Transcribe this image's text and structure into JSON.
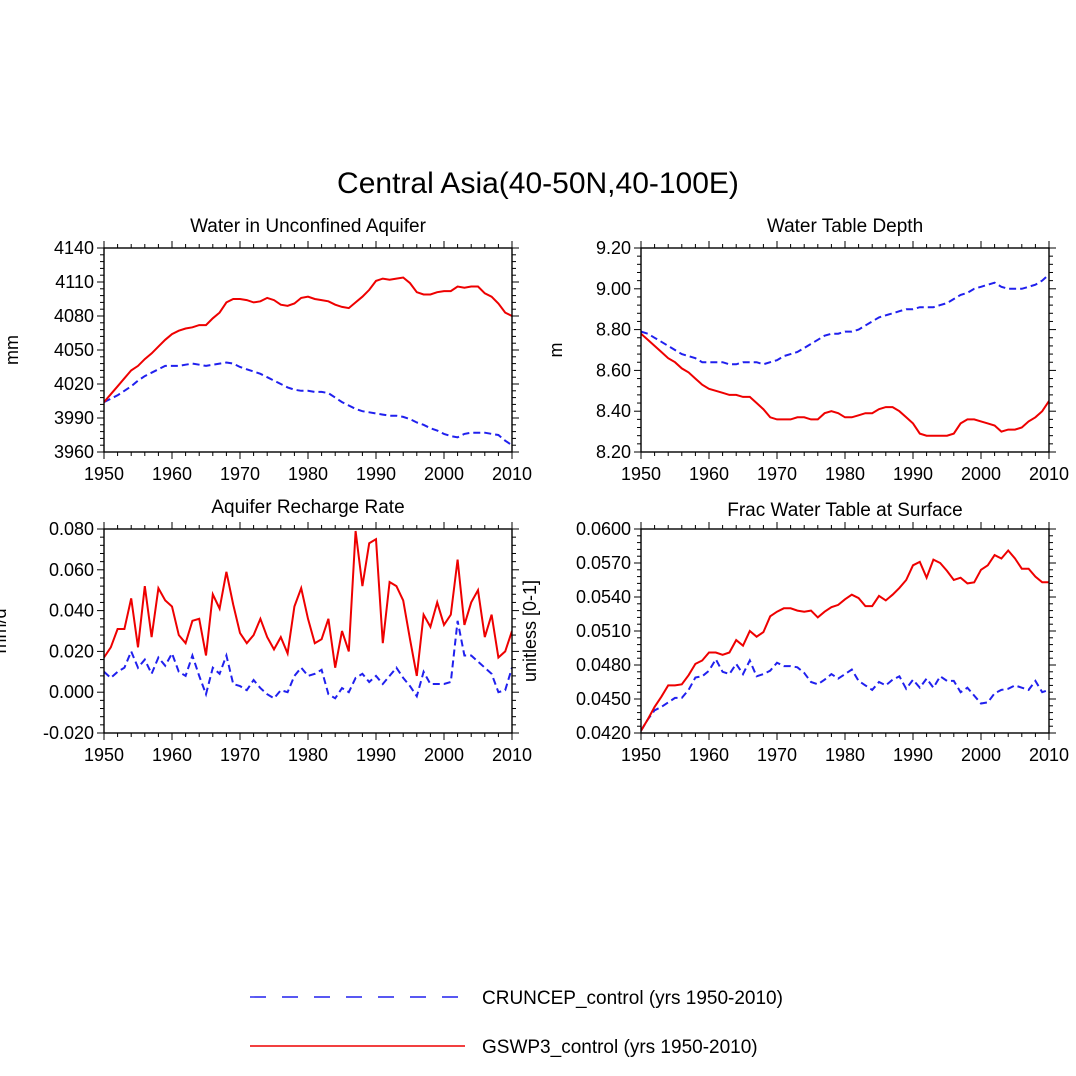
{
  "figure": {
    "title": "Central Asia(40-50N,40-100E)"
  },
  "legend": {
    "items": [
      {
        "label": "CRUNCEP_control (yrs 1950-2010)",
        "color": "#2020ee",
        "dash": "dashed"
      },
      {
        "label": "GSWP3_control (yrs 1950-2010)",
        "color": "#ee0000",
        "dash": "solid"
      }
    ]
  },
  "chart_data": [
    {
      "type": "line",
      "title": "Water in Unconfined Aquifer",
      "xlabel": "",
      "ylabel": "mm",
      "xlim": [
        1950,
        2010
      ],
      "ylim": [
        3960,
        4140
      ],
      "xticks": [
        1950,
        1960,
        1970,
        1980,
        1990,
        2000,
        2010
      ],
      "yticks": [
        3960,
        3990,
        4020,
        4050,
        4080,
        4110,
        4140
      ],
      "ytick_labels": [
        "3960",
        "3990",
        "4020",
        "4050",
        "4080",
        "4110",
        "4140"
      ],
      "xstart": 1950,
      "series": [
        {
          "name": "CRUNCEP_control (yrs 1950-2010)",
          "color": "#2020ee",
          "dash": "dashed",
          "values": [
            4004,
            4007,
            4010,
            4014,
            4018,
            4023,
            4027,
            4030,
            4033,
            4036,
            4036,
            4036,
            4037,
            4038,
            4037,
            4036,
            4037,
            4038,
            4039,
            4038,
            4035,
            4033,
            4031,
            4029,
            4026,
            4023,
            4020,
            4017,
            4015,
            4014,
            4014,
            4013,
            4013,
            4012,
            4008,
            4004,
            4001,
            3998,
            3996,
            3995,
            3994,
            3993,
            3992,
            3992,
            3991,
            3989,
            3986,
            3984,
            3981,
            3979,
            3976,
            3974,
            3973,
            3976,
            3977,
            3977,
            3977,
            3976,
            3975,
            3970,
            3966
          ]
        },
        {
          "name": "GSWP3_control (yrs 1950-2010)",
          "color": "#ee0000",
          "dash": "solid",
          "values": [
            4004,
            4011,
            4018,
            4025,
            4032,
            4036,
            4042,
            4047,
            4053,
            4059,
            4064,
            4067,
            4069,
            4070,
            4072,
            4072,
            4078,
            4083,
            4092,
            4095,
            4095,
            4094,
            4092,
            4093,
            4096,
            4094,
            4090,
            4089,
            4091,
            4096,
            4097,
            4095,
            4094,
            4093,
            4090,
            4088,
            4087,
            4092,
            4097,
            4103,
            4111,
            4113,
            4112,
            4113,
            4114,
            4109,
            4101,
            4099,
            4099,
            4101,
            4102,
            4102,
            4106,
            4105,
            4106,
            4106,
            4100,
            4097,
            4091,
            4083,
            4080
          ]
        }
      ]
    },
    {
      "type": "line",
      "title": "Water Table Depth",
      "xlabel": "",
      "ylabel": "m",
      "xlim": [
        1950,
        2010
      ],
      "ylim": [
        8.2,
        9.2
      ],
      "xticks": [
        1950,
        1960,
        1970,
        1980,
        1990,
        2000,
        2010
      ],
      "yticks": [
        8.2,
        8.4,
        8.6,
        8.8,
        9.0,
        9.2
      ],
      "ytick_labels": [
        "8.20",
        "8.40",
        "8.60",
        "8.80",
        "9.00",
        "9.20"
      ],
      "xstart": 1950,
      "series": [
        {
          "name": "CRUNCEP_control (yrs 1950-2010)",
          "color": "#2020ee",
          "dash": "dashed",
          "values": [
            8.79,
            8.78,
            8.76,
            8.74,
            8.72,
            8.7,
            8.68,
            8.67,
            8.66,
            8.64,
            8.64,
            8.64,
            8.64,
            8.63,
            8.63,
            8.64,
            8.64,
            8.64,
            8.63,
            8.64,
            8.65,
            8.67,
            8.68,
            8.69,
            8.71,
            8.73,
            8.75,
            8.77,
            8.78,
            8.78,
            8.79,
            8.79,
            8.8,
            8.82,
            8.84,
            8.86,
            8.87,
            8.88,
            8.89,
            8.9,
            8.9,
            8.91,
            8.91,
            8.91,
            8.92,
            8.93,
            8.95,
            8.97,
            8.98,
            9.0,
            9.01,
            9.02,
            9.03,
            9.01,
            9.0,
            9.0,
            9.0,
            9.01,
            9.02,
            9.04,
            9.07
          ]
        },
        {
          "name": "GSWP3_control (yrs 1950-2010)",
          "color": "#ee0000",
          "dash": "solid",
          "values": [
            8.78,
            8.75,
            8.72,
            8.69,
            8.66,
            8.64,
            8.61,
            8.59,
            8.56,
            8.53,
            8.51,
            8.5,
            8.49,
            8.48,
            8.48,
            8.47,
            8.47,
            8.44,
            8.41,
            8.37,
            8.36,
            8.36,
            8.36,
            8.37,
            8.37,
            8.36,
            8.36,
            8.39,
            8.4,
            8.39,
            8.37,
            8.37,
            8.38,
            8.39,
            8.39,
            8.41,
            8.42,
            8.42,
            8.4,
            8.37,
            8.34,
            8.29,
            8.28,
            8.28,
            8.28,
            8.28,
            8.29,
            8.34,
            8.36,
            8.36,
            8.35,
            8.34,
            8.33,
            8.3,
            8.31,
            8.31,
            8.32,
            8.35,
            8.37,
            8.4,
            8.45
          ]
        }
      ]
    },
    {
      "type": "line",
      "title": "Aquifer Recharge Rate",
      "xlabel": "",
      "ylabel": "mm/d",
      "xlim": [
        1950,
        2010
      ],
      "ylim": [
        -0.02,
        0.08
      ],
      "xticks": [
        1950,
        1960,
        1970,
        1980,
        1990,
        2000,
        2010
      ],
      "yticks": [
        -0.02,
        0.0,
        0.02,
        0.04,
        0.06,
        0.08
      ],
      "ytick_labels": [
        "-0.020",
        "0.000",
        "0.020",
        "0.040",
        "0.060",
        "0.080"
      ],
      "xstart": 1950,
      "series": [
        {
          "name": "CRUNCEP_control (yrs 1950-2010)",
          "color": "#2020ee",
          "dash": "dashed",
          "values": [
            0.01,
            0.007,
            0.01,
            0.012,
            0.02,
            0.012,
            0.016,
            0.009,
            0.017,
            0.013,
            0.019,
            0.01,
            0.008,
            0.018,
            0.008,
            -0.001,
            0.012,
            0.009,
            0.018,
            0.004,
            0.003,
            0.001,
            0.006,
            0.002,
            -0.001,
            -0.003,
            0.001,
            0.0,
            0.008,
            0.012,
            0.008,
            0.009,
            0.011,
            -0.001,
            -0.003,
            0.002,
            0.0,
            0.007,
            0.009,
            0.005,
            0.008,
            0.004,
            0.008,
            0.012,
            0.007,
            0.003,
            -0.002,
            0.01,
            0.004,
            0.004,
            0.004,
            0.005,
            0.035,
            0.018,
            0.018,
            0.015,
            0.012,
            0.009,
            0.0,
            0.001,
            0.012
          ]
        },
        {
          "name": "GSWP3_control (yrs 1950-2010)",
          "color": "#ee0000",
          "dash": "solid",
          "values": [
            0.017,
            0.022,
            0.031,
            0.031,
            0.046,
            0.022,
            0.052,
            0.027,
            0.051,
            0.045,
            0.042,
            0.028,
            0.024,
            0.035,
            0.036,
            0.018,
            0.048,
            0.041,
            0.059,
            0.043,
            0.029,
            0.024,
            0.028,
            0.036,
            0.027,
            0.021,
            0.027,
            0.019,
            0.042,
            0.051,
            0.036,
            0.024,
            0.026,
            0.036,
            0.012,
            0.03,
            0.02,
            0.079,
            0.052,
            0.073,
            0.075,
            0.024,
            0.054,
            0.052,
            0.045,
            0.026,
            0.008,
            0.038,
            0.032,
            0.044,
            0.033,
            0.038,
            0.065,
            0.033,
            0.044,
            0.05,
            0.027,
            0.038,
            0.017,
            0.02,
            0.03
          ]
        }
      ]
    },
    {
      "type": "line",
      "title": "Frac Water Table at Surface",
      "xlabel": "",
      "ylabel": "unitless [0-1]",
      "xlim": [
        1950,
        2010
      ],
      "ylim": [
        0.042,
        0.06
      ],
      "xticks": [
        1950,
        1960,
        1970,
        1980,
        1990,
        2000,
        2010
      ],
      "yticks": [
        0.042,
        0.045,
        0.048,
        0.051,
        0.054,
        0.057,
        0.06
      ],
      "ytick_labels": [
        "0.0420",
        "0.0450",
        "0.0480",
        "0.0510",
        "0.0540",
        "0.0570",
        "0.0600"
      ],
      "xstart": 1950,
      "series": [
        {
          "name": "CRUNCEP_control (yrs 1950-2010)",
          "color": "#2020ee",
          "dash": "dashed",
          "values": [
            0.0422,
            0.0432,
            0.044,
            0.0443,
            0.0447,
            0.0451,
            0.0451,
            0.0458,
            0.0469,
            0.047,
            0.0475,
            0.0485,
            0.0474,
            0.0472,
            0.0481,
            0.0472,
            0.0484,
            0.047,
            0.0472,
            0.0475,
            0.0482,
            0.0479,
            0.0479,
            0.0478,
            0.0473,
            0.0465,
            0.0463,
            0.0467,
            0.0472,
            0.0468,
            0.0472,
            0.0476,
            0.0466,
            0.0462,
            0.0458,
            0.0465,
            0.0462,
            0.0467,
            0.047,
            0.0459,
            0.0467,
            0.046,
            0.0468,
            0.046,
            0.047,
            0.0466,
            0.0466,
            0.0456,
            0.046,
            0.0453,
            0.0446,
            0.0447,
            0.0455,
            0.0458,
            0.0459,
            0.0462,
            0.046,
            0.0458,
            0.0466,
            0.0456,
            0.0458
          ]
        },
        {
          "name": "GSWP3_control (yrs 1950-2010)",
          "color": "#ee0000",
          "dash": "solid",
          "values": [
            0.0422,
            0.0432,
            0.0443,
            0.0452,
            0.0462,
            0.0462,
            0.0463,
            0.0471,
            0.0481,
            0.0484,
            0.0491,
            0.0491,
            0.0489,
            0.0491,
            0.0502,
            0.0497,
            0.051,
            0.0505,
            0.0509,
            0.0523,
            0.0527,
            0.053,
            0.053,
            0.0528,
            0.0527,
            0.0528,
            0.0522,
            0.0527,
            0.0531,
            0.0533,
            0.0538,
            0.0542,
            0.0539,
            0.0532,
            0.0532,
            0.0541,
            0.0537,
            0.0542,
            0.0548,
            0.0555,
            0.0568,
            0.0571,
            0.0557,
            0.0573,
            0.057,
            0.0563,
            0.0555,
            0.0557,
            0.0552,
            0.0553,
            0.0564,
            0.0568,
            0.0577,
            0.0574,
            0.0581,
            0.0574,
            0.0565,
            0.0565,
            0.0558,
            0.0553,
            0.0553
          ]
        }
      ]
    }
  ]
}
